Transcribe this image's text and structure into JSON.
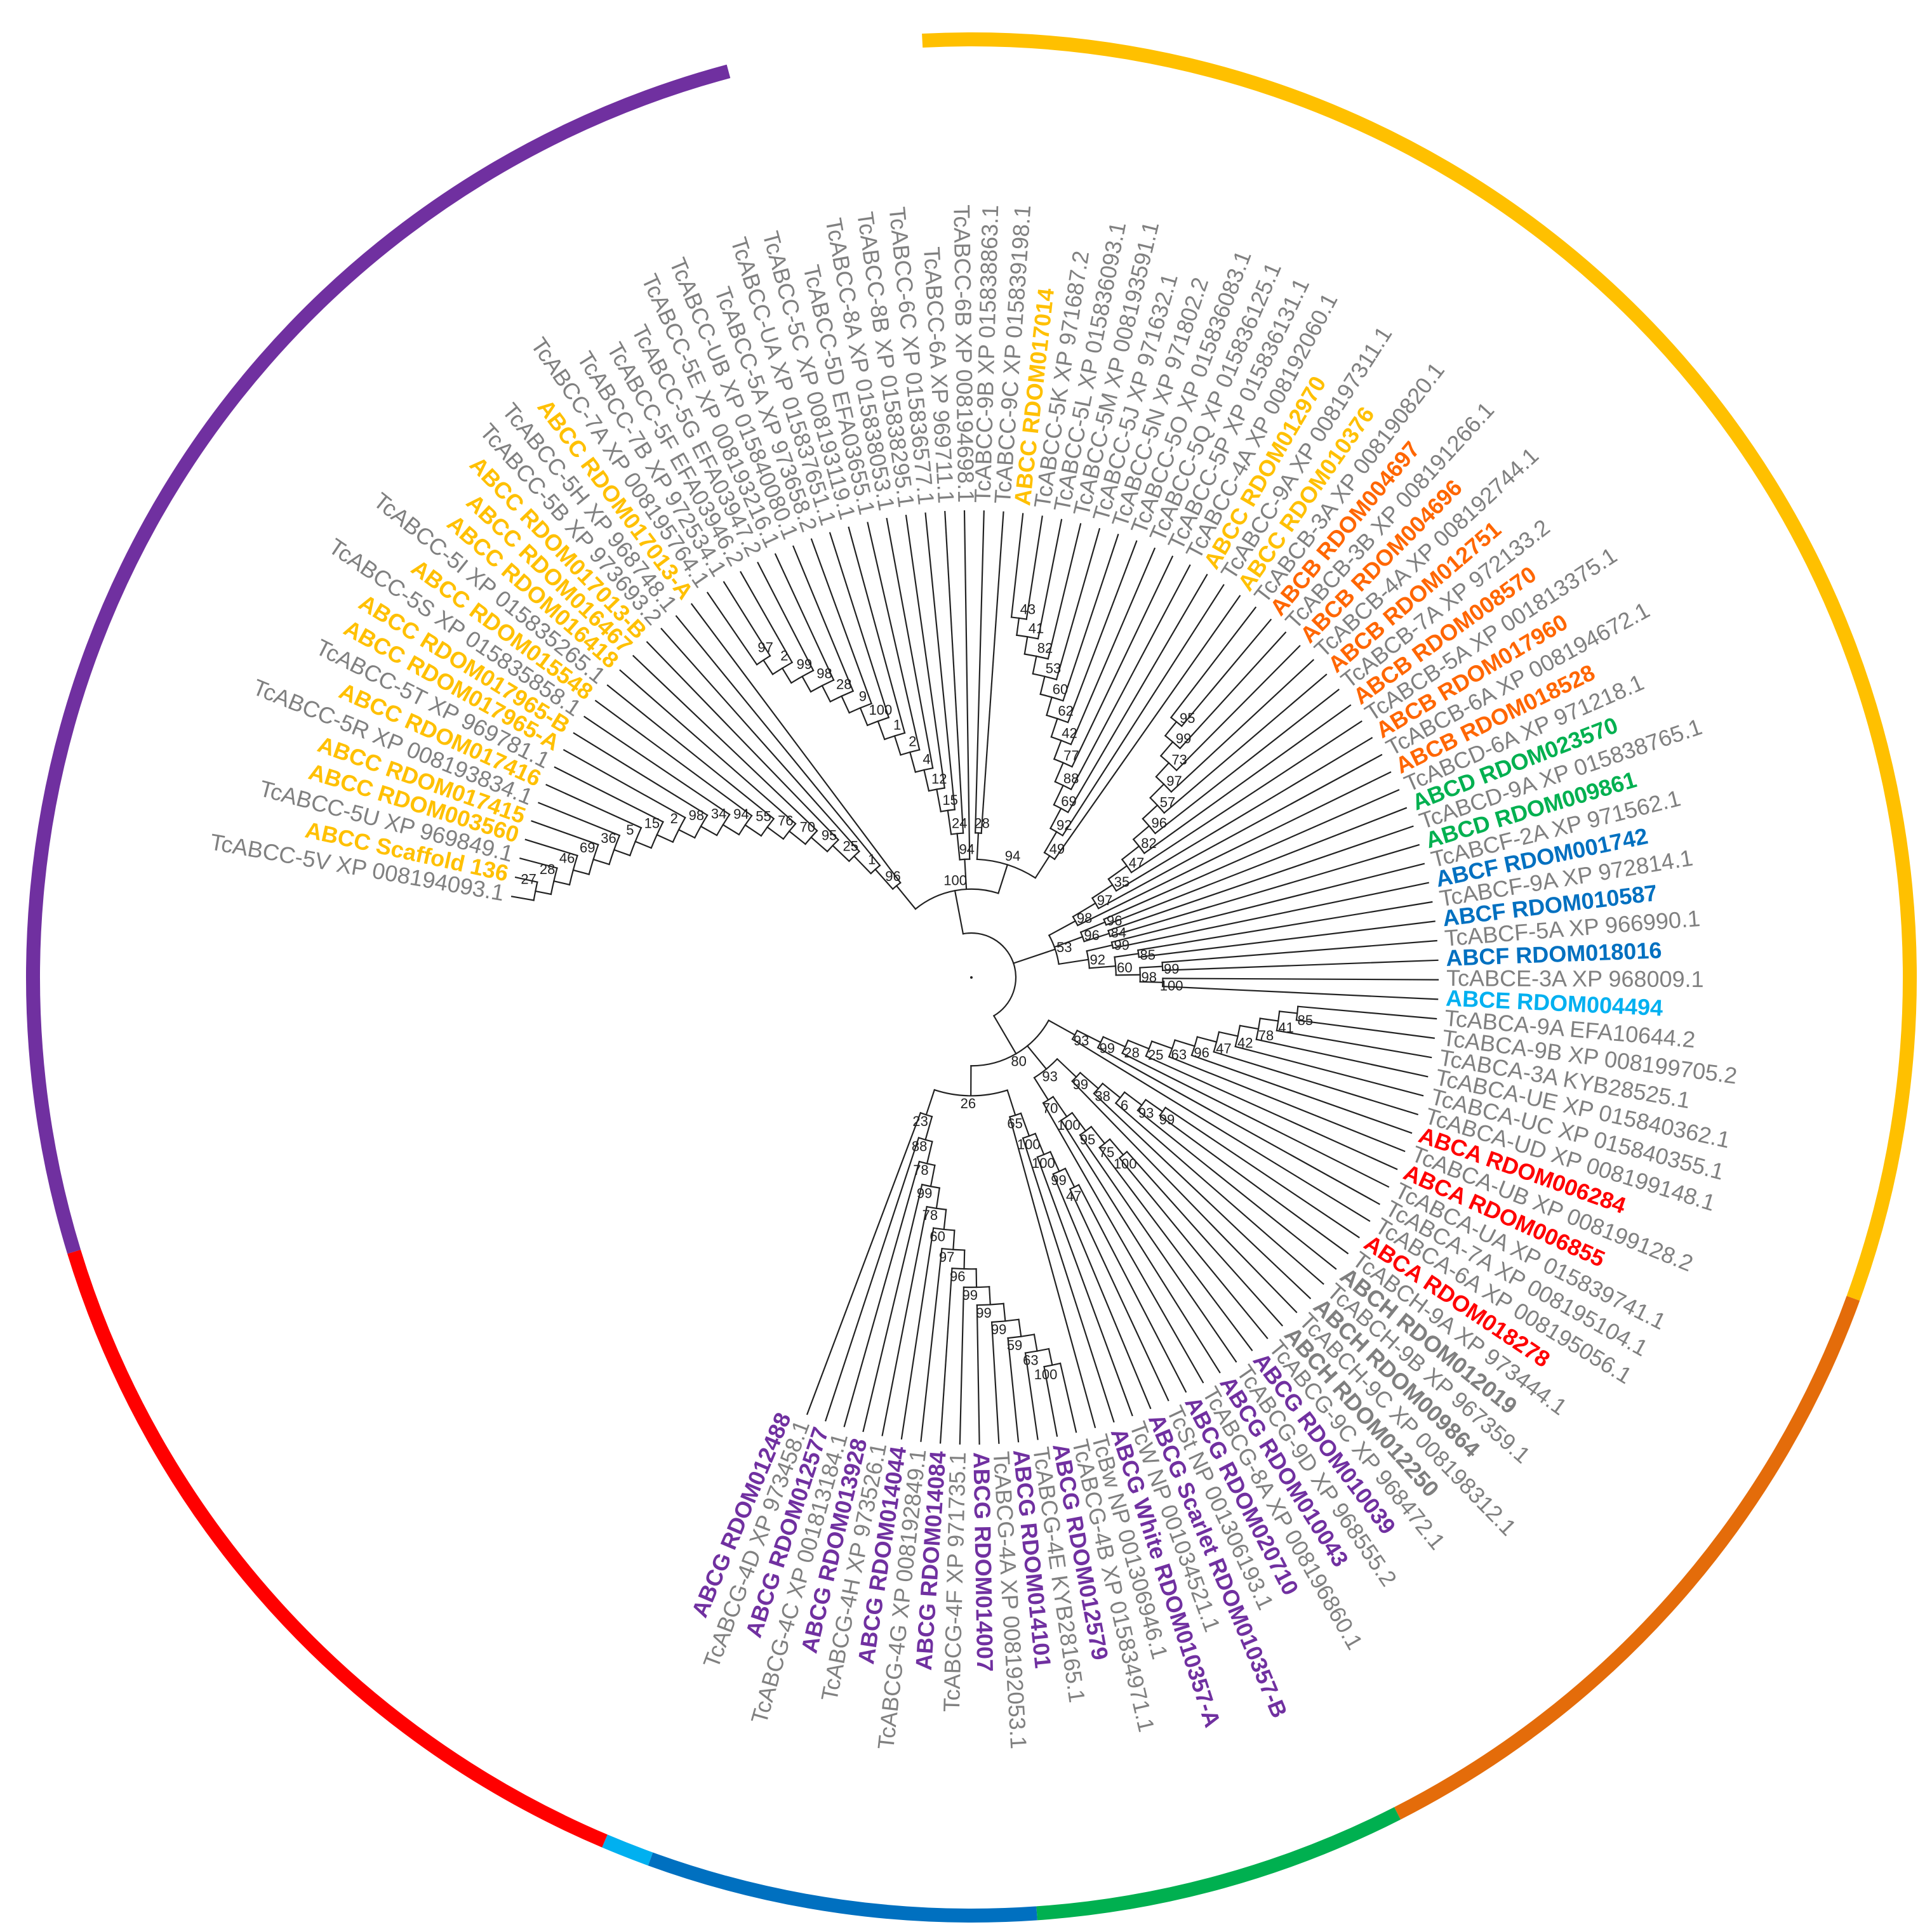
{
  "tree": {
    "group_colors": {
      "ABCG": "#7030A0",
      "ABCH": "#7F7F7F",
      "ABCA": "#FF0000",
      "ABCE": "#00B0F0",
      "ABCF": "#0070C0",
      "ABCD": "#00B050",
      "ABCB": "#FF6600",
      "ABCC": "#FFC000",
      "reference": "#808080"
    },
    "outer_arcs": [
      {
        "group": "ABCC",
        "color": "#FFC000"
      },
      {
        "group": "ABCB",
        "color": "#E46C0A"
      },
      {
        "group": "ABCD",
        "color": "#00B050"
      },
      {
        "group": "ABCF",
        "color": "#0070C0"
      },
      {
        "group": "ABCE",
        "color": "#00B0F0"
      },
      {
        "group": "ABCA",
        "color": "#FF0000"
      },
      {
        "group": "ABCG/ABCH",
        "color": "#7030A0"
      }
    ],
    "leaves": [
      {
        "label": "TcABCC-5V XP 008194093.1",
        "group": "reference"
      },
      {
        "label": "ABCC Scaffold 136",
        "group": "ABCC"
      },
      {
        "label": "TcABCC-5U XP 969849.1",
        "group": "reference"
      },
      {
        "label": "ABCC RDOM003560",
        "group": "ABCC"
      },
      {
        "label": "ABCC RDOM017415",
        "group": "ABCC"
      },
      {
        "label": "TcABCC-5R XP 008193834.1",
        "group": "reference"
      },
      {
        "label": "ABCC RDOM017416",
        "group": "ABCC"
      },
      {
        "label": "TcABCC-5T XP 969781.1",
        "group": "reference"
      },
      {
        "label": "ABCC RDOM017965-A",
        "group": "ABCC"
      },
      {
        "label": "ABCC RDOM017965-B",
        "group": "ABCC"
      },
      {
        "label": "TcABCC-5S XP 015835858.1",
        "group": "reference"
      },
      {
        "label": "ABCC RDOM015548",
        "group": "ABCC"
      },
      {
        "label": "TcABCC-5I XP 015835265.1",
        "group": "reference"
      },
      {
        "label": "ABCC RDOM016418",
        "group": "ABCC"
      },
      {
        "label": "ABCC RDOM016467",
        "group": "ABCC"
      },
      {
        "label": "ABCC RDOM017013-B",
        "group": "ABCC"
      },
      {
        "label": "TcABCC-5B XP 973693.2",
        "group": "reference"
      },
      {
        "label": "TcABCC-5H XP 968748.1",
        "group": "reference"
      },
      {
        "label": "ABCC RDOM017013-A",
        "group": "ABCC"
      },
      {
        "label": "TcABCC-7A XP 008195764.1",
        "group": "reference"
      },
      {
        "label": "TcABCC-7B XP 972534.1",
        "group": "reference"
      },
      {
        "label": "TcABCC-5F EFA03946.2",
        "group": "reference"
      },
      {
        "label": "TcABCC-5G EFA03947.2",
        "group": "reference"
      },
      {
        "label": "TcABCC-5E XP 008193216.1",
        "group": "reference"
      },
      {
        "label": "TcABCC-UB XP 015840080.1",
        "group": "reference"
      },
      {
        "label": "TcABCC-5A XP 973658.2",
        "group": "reference"
      },
      {
        "label": "TcABCC-UA XP 015837651.1",
        "group": "reference"
      },
      {
        "label": "TcABCC-5C XP 008193119.1",
        "group": "reference"
      },
      {
        "label": "TcABCC-5D EFA03655.1",
        "group": "reference"
      },
      {
        "label": "TcABCC-8A XP 015838053.1",
        "group": "reference"
      },
      {
        "label": "TcABCC-8B XP 015838295.1",
        "group": "reference"
      },
      {
        "label": "TcABCC-6C XP 015836577.1",
        "group": "reference"
      },
      {
        "label": "TcABCC-6A XP 969711.1",
        "group": "reference"
      },
      {
        "label": "TcABCC-6B XP 008194698.1",
        "group": "reference"
      },
      {
        "label": "TcABCC-9B XP 015838863.1",
        "group": "reference"
      },
      {
        "label": "TcABCC-9C XP 015839198.1",
        "group": "reference"
      },
      {
        "label": "ABCC RDOM017014",
        "group": "ABCC"
      },
      {
        "label": "TcABCC-5K XP 971687.2",
        "group": "reference"
      },
      {
        "label": "TcABCC-5L XP 015836093.1",
        "group": "reference"
      },
      {
        "label": "TcABCC-5M XP 008193591.1",
        "group": "reference"
      },
      {
        "label": "TcABCC-5J XP 971632.1",
        "group": "reference"
      },
      {
        "label": "TcABCC-5N XP 971802.2",
        "group": "reference"
      },
      {
        "label": "TcABCC-5O XP 015836083.1",
        "group": "reference"
      },
      {
        "label": "TcABCC-5Q XP 015836125.1",
        "group": "reference"
      },
      {
        "label": "TcABCC-5P XP 015836131.1",
        "group": "reference"
      },
      {
        "label": "TcABCC-4A XP 008192060.1",
        "group": "reference"
      },
      {
        "label": "ABCC RDOM012970",
        "group": "ABCC"
      },
      {
        "label": "TcABCC-9A XP 008197311.1",
        "group": "reference"
      },
      {
        "label": "ABCC RDOM010376",
        "group": "ABCC"
      },
      {
        "label": "TcABCB-3A XP 008190820.1",
        "group": "reference"
      },
      {
        "label": "ABCB RDOM004697",
        "group": "ABCB"
      },
      {
        "label": "TcABCB-3B XP 008191266.1",
        "group": "reference"
      },
      {
        "label": "ABCB RDOM004696",
        "group": "ABCB"
      },
      {
        "label": "TcABCB-4A XP 008192744.1",
        "group": "reference"
      },
      {
        "label": "ABCB RDOM012751",
        "group": "ABCB"
      },
      {
        "label": "TcABCB-7A XP 972133.2",
        "group": "reference"
      },
      {
        "label": "ABCB RDOM008570",
        "group": "ABCB"
      },
      {
        "label": "TcABCB-5A XP 001813375.1",
        "group": "reference"
      },
      {
        "label": "ABCB RDOM017960",
        "group": "ABCB"
      },
      {
        "label": "TcABCB-6A XP 008194672.1",
        "group": "reference"
      },
      {
        "label": "ABCB RDOM018528",
        "group": "ABCB"
      },
      {
        "label": "TcABCD-6A XP 971218.1",
        "group": "reference"
      },
      {
        "label": "ABCD RDOM023570",
        "group": "ABCD"
      },
      {
        "label": "TcABCD-9A XP 015838765.1",
        "group": "reference"
      },
      {
        "label": "ABCD RDOM009861",
        "group": "ABCD"
      },
      {
        "label": "TcABCF-2A XP 971562.1",
        "group": "reference"
      },
      {
        "label": "ABCF RDOM001742",
        "group": "ABCF"
      },
      {
        "label": "TcABCF-9A XP 972814.1",
        "group": "reference"
      },
      {
        "label": "ABCF RDOM010587",
        "group": "ABCF"
      },
      {
        "label": "TcABCF-5A XP 966990.1",
        "group": "reference"
      },
      {
        "label": "ABCF RDOM018016",
        "group": "ABCF"
      },
      {
        "label": "TcABCE-3A XP 968009.1",
        "group": "reference"
      },
      {
        "label": "ABCE RDOM004494",
        "group": "ABCE"
      },
      {
        "label": "TcABCA-9A EFA10644.2",
        "group": "reference"
      },
      {
        "label": "TcABCA-9B XP 008199705.2",
        "group": "reference"
      },
      {
        "label": "TcABCA-3A KYB28525.1",
        "group": "reference"
      },
      {
        "label": "TcABCA-UE XP 015840362.1",
        "group": "reference"
      },
      {
        "label": "TcABCA-UC XP 015840355.1",
        "group": "reference"
      },
      {
        "label": "TcABCA-UD XP 008199148.1",
        "group": "reference"
      },
      {
        "label": "ABCA RDOM006284",
        "group": "ABCA"
      },
      {
        "label": "TcABCA-UB XP 008199128.2",
        "group": "reference"
      },
      {
        "label": "ABCA RDOM006855",
        "group": "ABCA"
      },
      {
        "label": "TcABCA-UA XP 015839741.1",
        "group": "reference"
      },
      {
        "label": "TcABCA-7A XP 008195104.1",
        "group": "reference"
      },
      {
        "label": "TcABCA-6A XP 008195056.1",
        "group": "reference"
      },
      {
        "label": "ABCA RDOM018278",
        "group": "ABCA"
      },
      {
        "label": "TcABCH-9A XP 973444.1",
        "group": "reference"
      },
      {
        "label": "ABCH RDOM012019",
        "group": "ABCH"
      },
      {
        "label": "TcABCH-9B XP 967359.1",
        "group": "reference"
      },
      {
        "label": "ABCH RDOM009864",
        "group": "ABCH"
      },
      {
        "label": "TcABCH-9C XP 008198312.1",
        "group": "reference"
      },
      {
        "label": "ABCH RDOM012250",
        "group": "ABCH"
      },
      {
        "label": "TcABCG-9C XP 968472.1",
        "group": "reference"
      },
      {
        "label": "ABCG RDOM010039",
        "group": "ABCG"
      },
      {
        "label": "TcABCG-9D XP 968555.2",
        "group": "reference"
      },
      {
        "label": "ABCG RDOM010043",
        "group": "ABCG"
      },
      {
        "label": "TcABCG-8A XP 008196860.1",
        "group": "reference"
      },
      {
        "label": "ABCG RDOM020710",
        "group": "ABCG"
      },
      {
        "label": "TcSt NP 001306193.1",
        "group": "reference"
      },
      {
        "label": "ABCG Scarlet RDOM010357-B",
        "group": "ABCG"
      },
      {
        "label": "TcW NP 001034521.1",
        "group": "reference"
      },
      {
        "label": "ABCG White RDOM010357-A",
        "group": "ABCG"
      },
      {
        "label": "TcBw NP 001306946.1",
        "group": "reference"
      },
      {
        "label": "TcABCG-4B XP 015834971.1",
        "group": "reference"
      },
      {
        "label": "ABCG RDOM012579",
        "group": "ABCG"
      },
      {
        "label": "TcABCG-4E KYB28165.1",
        "group": "reference"
      },
      {
        "label": "ABCG RDOM014101",
        "group": "ABCG"
      },
      {
        "label": "TcABCG-4A XP 008192053.1",
        "group": "reference"
      },
      {
        "label": "ABCG RDOM014007",
        "group": "ABCG"
      },
      {
        "label": "TcABCG-4F XP 971735.1",
        "group": "reference"
      },
      {
        "label": "ABCG RDOM014084",
        "group": "ABCG"
      },
      {
        "label": "TcABCG-4G XP 008192849.1",
        "group": "reference"
      },
      {
        "label": "ABCG RDOM014044",
        "group": "ABCG"
      },
      {
        "label": "TcABCG-4H XP 973526.1",
        "group": "reference"
      },
      {
        "label": "ABCG RDOM013928",
        "group": "ABCG"
      },
      {
        "label": "TcABCG-4C XP 001813184.1",
        "group": "reference"
      },
      {
        "label": "ABCG RDOM012577",
        "group": "ABCG"
      },
      {
        "label": "TcABCG-4D XP 973458.1",
        "group": "reference"
      },
      {
        "label": "ABCG RDOM012488",
        "group": "ABCG"
      }
    ],
    "bootstrap_values": [
      "27",
      "28",
      "46",
      "69",
      "36",
      "5",
      "15",
      "2",
      "98",
      "34",
      "94",
      "55",
      "76",
      "70",
      "95",
      "25",
      "1",
      "96",
      "97",
      "2",
      "99",
      "98",
      "28",
      "9",
      "100",
      "1",
      "2",
      "4",
      "12",
      "15",
      "24",
      "94",
      "28",
      "43",
      "41",
      "82",
      "53",
      "60",
      "62",
      "42",
      "77",
      "88",
      "69",
      "92",
      "49",
      "94",
      "100",
      "95",
      "99",
      "73",
      "97",
      "57",
      "96",
      "82",
      "47",
      "35",
      "97",
      "98",
      "96",
      "84",
      "96",
      "99",
      "85",
      "99",
      "100",
      "98",
      "60",
      "92",
      "53",
      "85",
      "41",
      "78",
      "42",
      "47",
      "96",
      "63",
      "25",
      "28",
      "99",
      "93",
      "99",
      "93",
      "6",
      "38",
      "99",
      "100",
      "75",
      "95",
      "100",
      "70",
      "93",
      "47",
      "99",
      "100",
      "100",
      "65",
      "100",
      "63",
      "59",
      "99",
      "99",
      "99",
      "96",
      "97",
      "60",
      "78",
      "99",
      "78",
      "88",
      "23",
      "26",
      "80",
      "66",
      "43",
      "99",
      "100"
    ]
  }
}
